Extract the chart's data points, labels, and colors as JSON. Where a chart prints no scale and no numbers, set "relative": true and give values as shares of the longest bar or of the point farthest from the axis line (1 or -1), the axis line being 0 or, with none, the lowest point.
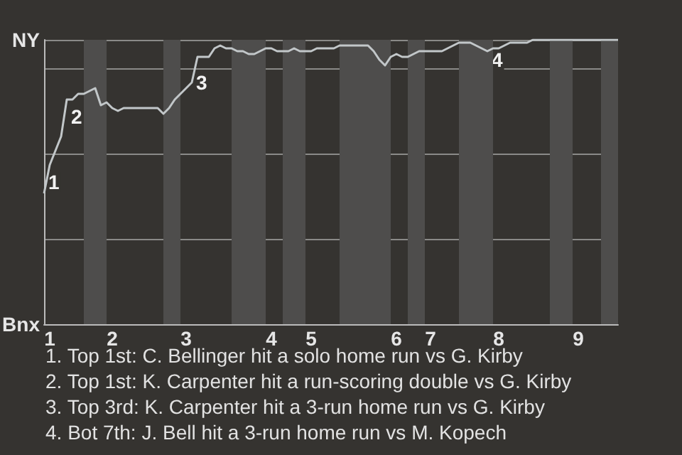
{
  "chart_data": {
    "type": "line",
    "relative": true,
    "categories": [
      null,
      "1",
      null,
      null,
      null,
      null,
      null,
      null,
      null,
      null,
      null,
      null,
      "2",
      null,
      null,
      null,
      null,
      null,
      null,
      null,
      null,
      null,
      null,
      null,
      null,
      "3",
      null,
      null,
      null,
      null,
      null,
      null,
      null,
      null,
      null,
      null,
      null,
      null,
      null,
      null,
      "4",
      null,
      null,
      null,
      null,
      null,
      null,
      "5",
      null,
      null,
      null,
      null,
      null,
      null,
      null,
      null,
      null,
      null,
      null,
      null,
      null,
      null,
      "6",
      null,
      null,
      null,
      null,
      null,
      "7",
      null,
      null,
      null,
      null,
      null,
      null,
      null,
      null,
      null,
      null,
      null,
      "8",
      null,
      null,
      null,
      null,
      null,
      null,
      null,
      null,
      null,
      null,
      null,
      null,
      null,
      "9",
      null,
      null,
      null,
      null,
      null,
      null,
      null
    ],
    "values": [
      0.46,
      0.56,
      0.61,
      0.66,
      0.79,
      0.79,
      0.81,
      0.81,
      0.82,
      0.83,
      0.77,
      0.78,
      0.76,
      0.75,
      0.76,
      0.76,
      0.76,
      0.76,
      0.76,
      0.76,
      0.76,
      0.74,
      0.76,
      0.79,
      0.81,
      0.83,
      0.85,
      0.94,
      0.94,
      0.94,
      0.97,
      0.98,
      0.97,
      0.97,
      0.96,
      0.96,
      0.95,
      0.95,
      0.96,
      0.97,
      0.97,
      0.96,
      0.96,
      0.96,
      0.97,
      0.96,
      0.96,
      0.96,
      0.97,
      0.97,
      0.97,
      0.97,
      0.98,
      0.98,
      0.98,
      0.98,
      0.98,
      0.98,
      0.96,
      0.93,
      0.91,
      0.94,
      0.95,
      0.94,
      0.94,
      0.95,
      0.96,
      0.96,
      0.96,
      0.96,
      0.96,
      0.97,
      0.98,
      0.99,
      0.99,
      0.99,
      0.98,
      0.97,
      0.96,
      0.97,
      0.97,
      0.98,
      0.99,
      0.99,
      0.99,
      0.99,
      1,
      1,
      1,
      1,
      1,
      1,
      1,
      1,
      1,
      1,
      1,
      1,
      1,
      1,
      1,
      1
    ],
    "color": "#c2c7c9",
    "grid": "y",
    "annotations": [
      "NY",
      "Bnx",
      "1",
      "2",
      "3",
      "4",
      "1. Top 1st: C. Bellinger hit a solo home run vs G. Kirby",
      "2. Top 1st: K. Carpenter hit a run-scoring double vs G. Kirby",
      "3. Top 3rd: K. Carpenter hit a 3-run home run vs G. Kirby",
      "4. Bot 7th: J. Bell hit a 3-run home run vs M. Kopech"
    ]
  }
}
